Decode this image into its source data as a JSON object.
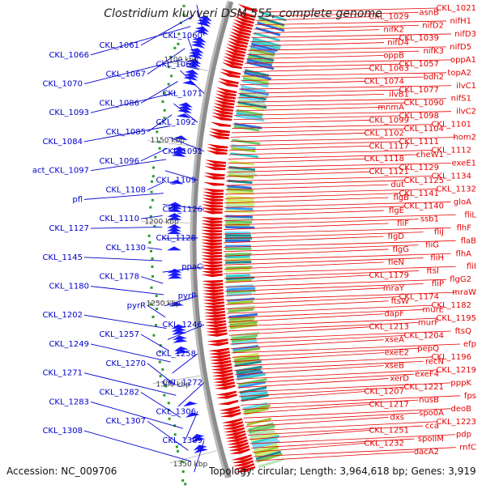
{
  "title": "Clostridium kluyveri DSM 555, complete genome",
  "footer": {
    "accession": "Accession: NC_009706",
    "summary": "Topology: circular; Length: 3,964,618 bp; Genes: 3,919"
  },
  "colors": {
    "left_labels": "#0000cc",
    "right_labels": "#e60000",
    "backbone": "#8c8c8c",
    "forward_genes": "#e60000",
    "reverse_genes": "#1a1aff",
    "rna_marks": "#2a9d2a"
  },
  "scale_labels": [
    "1100 kbp",
    "1150 kbp",
    "1200 kbp",
    "1250 kbp",
    "1300 kbp",
    "1350 kbp"
  ],
  "left_labels": [
    "CKL_1060",
    "CKL_1061",
    "CKL_1066",
    "CKL_1062",
    "CKL_1067",
    "CKL_1070",
    "CKL_1071",
    "CKL_1086",
    "CKL_1093",
    "CKL_1092",
    "CKL_1085",
    "CKL_1084",
    "CKL_1091",
    "CKL_1096",
    "act_CKL_1097",
    "CKL_1109",
    "CKL_1108",
    "pfl",
    "CKL_1126",
    "CKL_1110",
    "CKL_1127",
    "CKL_1128",
    "CKL_1130",
    "CKL_1145",
    "ppaC",
    "CKL_1178",
    "CKL_1180",
    "pyrP",
    "pyrR",
    "CKL_1202",
    "CKL_1246",
    "CKL_1257",
    "CKL_1249",
    "CKL_1258",
    "CKL_1270",
    "CKL_1271",
    "CKL_1272",
    "CKL_1282",
    "CKL_1283",
    "CKL_1306",
    "CKL_1307",
    "CKL_1308",
    "CKL_1309"
  ],
  "right_labels": [
    "CKL_1021",
    "asnB",
    "CKL_1029",
    "nifH1",
    "nifD2",
    "nifK2",
    "nifD3",
    "CKL_1039",
    "nifD4",
    "nifD5",
    "nifK3",
    "oppB",
    "oppA1",
    "CKL_1057",
    "CKL_1063",
    "topA2",
    "bdh2",
    "CKL_1074",
    "ilvC1",
    "CKL_1077",
    "ilvB1",
    "nifS1",
    "CKL_1090",
    "mnmA",
    "ilvC2",
    "CKL_1098",
    "CKL_1099",
    "CKL_1101",
    "CKL_1104",
    "CKL_1102",
    "hom2",
    "CKL_1111",
    "CKL_1117",
    "CKL_1112",
    "cheW1",
    "CKL_1118",
    "exeE1",
    "CKL_1129",
    "CKL_1121",
    "CKL_1134",
    "CKL_1125",
    "dut",
    "CKL_1132",
    "CKL_1141",
    "flgB",
    "gloA",
    "CKL_1140",
    "flgE",
    "fliL",
    "ssb1",
    "fliF",
    "flhF",
    "fliJ",
    "flgD",
    "flaB",
    "fliG",
    "flgG",
    "flhA",
    "fliH",
    "fleN",
    "fliI",
    "ftsI",
    "CKL_1179",
    "flgG2",
    "fliP",
    "mraY",
    "mraW",
    "CKL_1174",
    "ftsW",
    "CKL_1182",
    "murE",
    "dapF",
    "CKL_1195",
    "murF",
    "CKL_1213",
    "ftsQ",
    "CKL_1204",
    "xseA",
    "efp",
    "pepQ",
    "exeE2",
    "CKL_1196",
    "recN",
    "xseB",
    "CKL_1219",
    "exeF4",
    "xerD",
    "pppK",
    "CKL_1221",
    "CKL_1207",
    "fps",
    "nusB",
    "CKL_1217",
    "deoB",
    "spo0A",
    "dxs",
    "CKL_1223",
    "cca",
    "CKL_1251",
    "pdp",
    "spoIIM",
    "CKL_1232",
    "rnfC",
    "dacA2"
  ]
}
